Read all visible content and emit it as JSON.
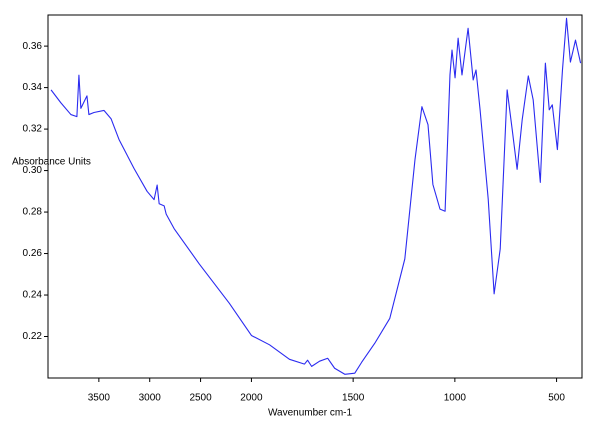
{
  "chart_data": {
    "type": "line",
    "x_label": "Wavenumber cm-1",
    "y_label": "Absorbance Units",
    "x": [
      3970,
      3874,
      3775,
      3716,
      3696,
      3677,
      3637,
      3617,
      3598,
      3548,
      3450,
      3380,
      3302,
      3154,
      3026,
      2957,
      2927,
      2907,
      2858,
      2838,
      2760,
      2513,
      2217,
      2000,
      1911,
      1813,
      1739,
      1724,
      1704,
      1665,
      1625,
      1591,
      1541,
      1492,
      1458,
      1394,
      1320,
      1246,
      1196,
      1162,
      1132,
      1108,
      1073,
      1048,
      1024,
      1014,
      999,
      984,
      965,
      935,
      910,
      896,
      876,
      836,
      807,
      777,
      743,
      718,
      694,
      669,
      639,
      615,
      580,
      555,
      536,
      521,
      496,
      471,
      451,
      432,
      407,
      382
    ],
    "series": [
      {
        "color": "#2b2bf0",
        "values": [
          0.3389,
          0.3327,
          0.327,
          0.326,
          0.346,
          0.33,
          0.334,
          0.336,
          0.327,
          0.328,
          0.329,
          0.325,
          0.315,
          0.301,
          0.29,
          0.286,
          0.293,
          0.284,
          0.283,
          0.279,
          0.272,
          0.255,
          0.236,
          0.2205,
          0.216,
          0.209,
          0.2067,
          0.2086,
          0.2056,
          0.2081,
          0.2095,
          0.2047,
          0.2018,
          0.2023,
          0.2076,
          0.2167,
          0.2287,
          0.2574,
          0.3053,
          0.3308,
          0.3221,
          0.2933,
          0.2814,
          0.2804,
          0.3461,
          0.3581,
          0.3447,
          0.3638,
          0.3461,
          0.3686,
          0.3437,
          0.3485,
          0.3293,
          0.2862,
          0.2406,
          0.2622,
          0.3389,
          0.3197,
          0.3006,
          0.3245,
          0.3456,
          0.3341,
          0.2943,
          0.3518,
          0.3293,
          0.3317,
          0.3101,
          0.3485,
          0.3734,
          0.3523,
          0.3629,
          0.3518
        ]
      }
    ],
    "xlim": [
      4000,
      375
    ],
    "xticks": [
      3500,
      3000,
      2500,
      2000,
      1500,
      1000,
      500
    ],
    "x_compress_above": 2000,
    "x_compress_factor": 0.5,
    "ylim": [
      0.2,
      0.375
    ],
    "yticks": [
      0.22,
      0.24,
      0.26,
      0.28,
      {
        "value": 0.3,
        "label": "0.30"
      },
      0.32,
      0.34,
      0.36
    ]
  }
}
